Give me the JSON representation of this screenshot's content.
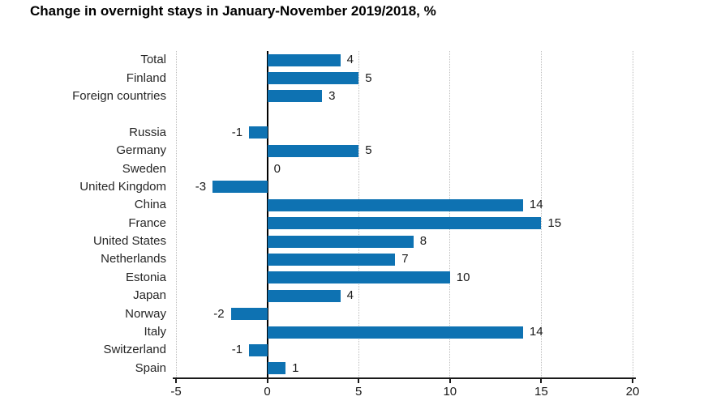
{
  "title": "Change in overnight stays in January-November 2019/2018, %",
  "colors": {
    "bar": "#0e72b2",
    "grid": "#bdbdbd",
    "axis": "#1a1a1a",
    "zero_line": "#000000",
    "text": "#262626",
    "background": "#ffffff"
  },
  "chart_data": {
    "type": "bar",
    "orientation": "horizontal",
    "title": "Change in overnight stays in January-November 2019/2018, %",
    "categories": [
      "Total",
      "Finland",
      "Foreign countries",
      "",
      "Russia",
      "Germany",
      "Sweden",
      "United Kingdom",
      "China",
      "France",
      "United States",
      "Netherlands",
      "Estonia",
      "Japan",
      "Norway",
      "Italy",
      "Switzerland",
      "Spain"
    ],
    "values": [
      4,
      5,
      3,
      null,
      -1,
      5,
      0,
      -3,
      14,
      15,
      8,
      7,
      10,
      4,
      -2,
      14,
      -1,
      1
    ],
    "value_labels": [
      "4",
      "5",
      "3",
      "",
      "-1",
      "5",
      "0",
      "-3",
      "14",
      "15",
      "8",
      "7",
      "10",
      "4",
      "-2",
      "14",
      "-1",
      "1"
    ],
    "xlabel": "",
    "ylabel": "",
    "xlim": [
      -5,
      20
    ],
    "xticks": [
      "-5",
      "0",
      "5",
      "10",
      "15",
      "20"
    ],
    "xtick_values": [
      -5,
      0,
      5,
      10,
      15,
      20
    ],
    "grid": "vertical dotted gridlines at ticks, solid black zero line",
    "legend": false
  }
}
